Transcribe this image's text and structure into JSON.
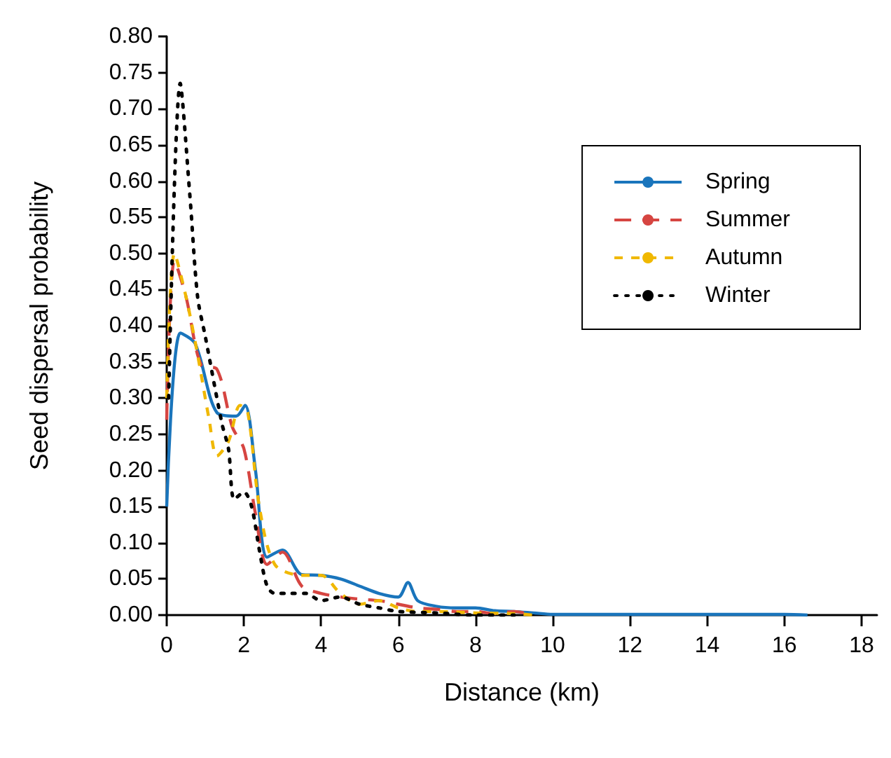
{
  "chart_data": {
    "type": "line",
    "xlabel": "Distance (km)",
    "ylabel": "Seed dispersal probability",
    "xlim": [
      0,
      18.4
    ],
    "xticks": [
      0,
      2,
      4,
      6,
      8,
      10,
      12,
      14,
      16,
      18
    ],
    "ylim": [
      0,
      0.8
    ],
    "yticks": [
      {
        "value": 0,
        "label": "0.00"
      },
      {
        "value": 0.05,
        "label": "0.05"
      },
      {
        "value": 0.1,
        "label": "0.10"
      },
      {
        "value": 0.15,
        "label": "0.15"
      },
      {
        "value": 0.2,
        "label": "0.20"
      },
      {
        "value": 0.25,
        "label": "0.25"
      },
      {
        "value": 0.3,
        "label": "0.30"
      },
      {
        "value": 0.35,
        "label": "0.35"
      },
      {
        "value": 0.4,
        "label": "0.40"
      },
      {
        "value": 0.45,
        "label": "0.45"
      },
      {
        "value": 0.5,
        "label": "0.50"
      },
      {
        "value": 0.55,
        "label": "0.55"
      },
      {
        "value": 0.6,
        "label": "0.60"
      },
      {
        "value": 0.65,
        "label": "0.65"
      },
      {
        "value": 0.7,
        "label": "0.70"
      },
      {
        "value": 0.75,
        "label": "0.75"
      },
      {
        "value": 0.8,
        "label": "0.80"
      }
    ],
    "grid": false,
    "legend": "top right",
    "marker": "none",
    "series": [
      {
        "name": "Spring",
        "color": "#1a75bc",
        "line_style": "solid",
        "x": [
          0,
          0.35,
          0.74,
          1.3,
          1.8,
          2.03,
          2.3,
          2.6,
          3.0,
          3.5,
          4,
          4.5,
          5,
          5.5,
          6,
          6.25,
          6.5,
          7,
          7.5,
          8,
          8.5,
          9,
          9.5,
          10,
          11,
          12,
          13,
          14,
          15,
          16,
          16.6
        ],
        "values": [
          0.15,
          0.39,
          0.375,
          0.28,
          0.275,
          0.29,
          0.2,
          0.08,
          0.09,
          0.056,
          0.055,
          0.05,
          0.04,
          0.03,
          0.025,
          0.045,
          0.02,
          0.012,
          0.01,
          0.01,
          0.006,
          0.005,
          0.003,
          0.001,
          0.001,
          0.001,
          0.001,
          0.001,
          0.001,
          0.001,
          0
        ]
      },
      {
        "name": "Summer",
        "color": "#d64541",
        "line_style": "dashed",
        "x": [
          0,
          0.2,
          0.5,
          0.9,
          1.3,
          1.7,
          2.0,
          2.3,
          2.6,
          3.0,
          3.5,
          4,
          4.5,
          5,
          5.5,
          6,
          6.5,
          7,
          7.5,
          8,
          8.5,
          9,
          9.5
        ],
        "values": [
          0.27,
          0.49,
          0.44,
          0.345,
          0.34,
          0.26,
          0.23,
          0.14,
          0.07,
          0.087,
          0.04,
          0.03,
          0.025,
          0.022,
          0.02,
          0.015,
          0.01,
          0.008,
          0.005,
          0.005,
          0.002,
          0.005,
          0
        ]
      },
      {
        "name": "Autumn",
        "color": "#f0b800",
        "line_style": "dashed",
        "x": [
          0,
          0.2,
          0.5,
          0.8,
          1.1,
          1.3,
          1.6,
          1.9,
          2.1,
          2.4,
          2.8,
          3.5,
          4,
          4.5,
          5,
          5.5,
          6,
          6.5,
          7,
          8,
          9,
          9.5
        ],
        "values": [
          0.3,
          0.5,
          0.44,
          0.36,
          0.27,
          0.22,
          0.24,
          0.29,
          0.28,
          0.15,
          0.07,
          0.055,
          0.055,
          0.03,
          0.015,
          0.02,
          0.01,
          0.005,
          0.005,
          0.003,
          0.002,
          0
        ]
      },
      {
        "name": "Winter",
        "color": "#000000",
        "line_style": "dotted",
        "x": [
          0.05,
          0.35,
          0.6,
          0.8,
          1.0,
          1.43,
          1.6,
          1.75,
          2.0,
          2.2,
          2.4,
          2.6,
          2.8,
          3.2,
          3.6,
          4,
          4.5,
          5,
          5.5,
          6,
          7,
          8,
          9
        ],
        "values": [
          0.3,
          0.735,
          0.58,
          0.44,
          0.385,
          0.265,
          0.23,
          0.16,
          0.17,
          0.15,
          0.09,
          0.04,
          0.03,
          0.03,
          0.03,
          0.02,
          0.025,
          0.015,
          0.01,
          0.005,
          0.003,
          0,
          0
        ]
      }
    ]
  }
}
